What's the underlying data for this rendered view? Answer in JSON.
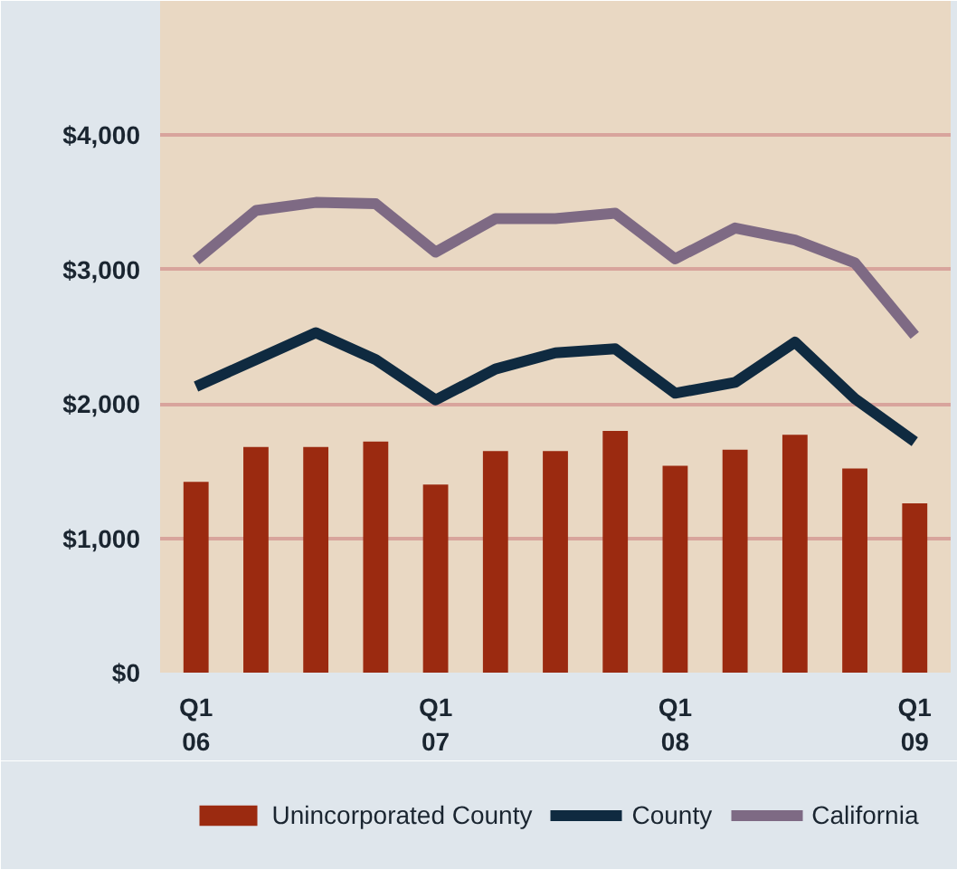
{
  "chart_data": {
    "type": "bar",
    "categories": [
      "Q1\n06",
      null,
      null,
      null,
      "Q1\n07",
      null,
      null,
      null,
      "Q1\n08",
      null,
      null,
      null,
      "Q1\n09"
    ],
    "series": [
      {
        "name": "Unincorporated County",
        "color": "#9b2a10",
        "values": [
          1420,
          1680,
          1680,
          1720,
          1400,
          1650,
          1650,
          1800,
          1540,
          1660,
          1770,
          1520,
          1260
        ]
      },
      {
        "name": "County",
        "type": "line",
        "color": "#0f2a40",
        "values": [
          2130,
          2330,
          2530,
          2330,
          2030,
          2260,
          2380,
          2410,
          2080,
          2160,
          2460,
          2040,
          1720
        ]
      },
      {
        "name": "California",
        "type": "line",
        "color": "#7e6a84",
        "values": [
          3070,
          3440,
          3500,
          3490,
          3130,
          3380,
          3380,
          3420,
          3080,
          3310,
          3220,
          3050,
          2510
        ]
      }
    ],
    "ylim": [
      0,
      5000
    ],
    "yticks": [
      {
        "value": 0,
        "label": "$0"
      },
      {
        "value": 1000,
        "label": "$1,000"
      },
      {
        "value": 2000,
        "label": "$2,000"
      },
      {
        "value": 3000,
        "label": "$3,000"
      },
      {
        "value": 4000,
        "label": "$4,000"
      }
    ],
    "grid": "y",
    "legend": "bottom",
    "marker": "none",
    "line_style": "solid"
  }
}
